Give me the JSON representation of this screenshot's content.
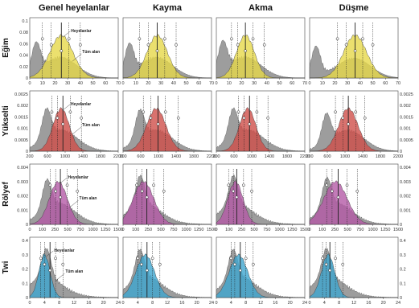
{
  "columns": [
    "Genel heyelanlar",
    "Kayma",
    "Akma",
    "Düşme"
  ],
  "rows": [
    "Eğim",
    "Yükselti",
    "Rölyef",
    "Twi"
  ],
  "labels": {
    "landslides": "Heyelanlar",
    "whole_area": "Tüm alan"
  },
  "colors": {
    "Eğim": "#e6d84a",
    "Yükselti": "#cf4f4a",
    "Rölyef": "#b45aa6",
    "Twi": "#3fa6cf",
    "whole_area": "#8c8c8c"
  },
  "chart_data": [
    {
      "type": "area",
      "row": "Eğim",
      "xlim": [
        0,
        70
      ],
      "xticks": [
        "0",
        "10",
        "20",
        "30",
        "40",
        "50",
        "60",
        "70"
      ],
      "yticks_left": [
        "0",
        "0.02",
        "0.04",
        "0.06",
        "0.08",
        "0.1"
      ],
      "yticks_right": [],
      "ylim": [
        0,
        0.1
      ],
      "panels": [
        {
          "column": "Genel heyelanlar",
          "landslide_peak": 25,
          "landslide_spread": 9,
          "area_peak": 5,
          "markers": [
            10,
            17,
            25,
            31,
            40
          ]
        },
        {
          "column": "Kayma",
          "landslide_peak": 27,
          "landslide_spread": 8,
          "area_peak": 5,
          "markers": [
            13,
            20,
            27,
            33,
            42
          ]
        },
        {
          "column": "Akma",
          "landslide_peak": 23,
          "landslide_spread": 7,
          "area_peak": 5,
          "markers": [
            12,
            17,
            23,
            29,
            38
          ]
        },
        {
          "column": "Düşme",
          "landslide_peak": 36,
          "landslide_spread": 9,
          "area_peak": 5,
          "markers": [
            22,
            29,
            36,
            42,
            50
          ]
        }
      ]
    },
    {
      "type": "area",
      "row": "Yükselti",
      "xlim": [
        0,
        2400
      ],
      "xticks": [
        "200",
        "600",
        "1000",
        "1400",
        "1800",
        "2200"
      ],
      "yticks_left": [
        "0",
        "0.0005",
        "0.001",
        "0.0015",
        "0.002",
        "0.0025"
      ],
      "yticks_right": [
        "0",
        "0.0005",
        "0.001",
        "0.0015",
        "0.002",
        "0.0025"
      ],
      "ylim": [
        0,
        0.0025
      ],
      "panels": [
        {
          "column": "Genel heyelanlar",
          "landslide_peak": 850,
          "landslide_spread": 220,
          "area_peak": 450,
          "markers": [
            600,
            750,
            900,
            1100,
            1400
          ]
        },
        {
          "column": "Kayma",
          "landslide_peak": 900,
          "landslide_spread": 260,
          "area_peak": 450,
          "markers": [
            550,
            750,
            950,
            1150,
            1500
          ]
        },
        {
          "column": "Akma",
          "landslide_peak": 850,
          "landslide_spread": 220,
          "area_peak": 450,
          "markers": [
            600,
            750,
            900,
            1100,
            1400
          ]
        },
        {
          "column": "Düşme",
          "landslide_peak": 1050,
          "landslide_spread": 260,
          "area_peak": 450,
          "markers": [
            700,
            900,
            1050,
            1250,
            1500
          ]
        }
      ]
    },
    {
      "type": "area",
      "row": "Rölyef",
      "xlim": [
        0,
        1300
      ],
      "xticks": [
        "0",
        "100",
        "250",
        "500",
        "750",
        "1000",
        "1250",
        "1500"
      ],
      "yticks_left": [
        "0",
        "0.001",
        "0.002",
        "0.003",
        "0.004"
      ],
      "yticks_right": [
        "0",
        "0.001",
        "0.002",
        "0.003",
        "0.004"
      ],
      "ylim": [
        0,
        0.004
      ],
      "panels": [
        {
          "column": "Genel heyelanlar",
          "landslide_peak": 420,
          "landslide_spread": 130,
          "area_peak": 250,
          "markers": [
            300,
            380,
            450,
            550,
            700
          ]
        },
        {
          "column": "Kayma",
          "landslide_peak": 300,
          "landslide_spread": 150,
          "area_peak": 250,
          "markers": [
            200,
            280,
            350,
            450,
            600
          ]
        },
        {
          "column": "Akma",
          "landslide_peak": 280,
          "landslide_spread": 110,
          "area_peak": 250,
          "markers": [
            180,
            250,
            300,
            400,
            520
          ]
        },
        {
          "column": "Düşme",
          "landslide_peak": 380,
          "landslide_spread": 170,
          "area_peak": 250,
          "markers": [
            250,
            330,
            420,
            550,
            700
          ]
        }
      ]
    },
    {
      "type": "area",
      "row": "Twi",
      "xlim": [
        0,
        24
      ],
      "xticks": [
        "0",
        "4",
        "8",
        "12",
        "16",
        "20",
        "24"
      ],
      "yticks_left": [
        "0",
        "0.1",
        "0.2",
        "0.3",
        "0.4"
      ],
      "yticks_right": [
        "0",
        "0.1",
        "0.2",
        "0.3",
        "0.4"
      ],
      "ylim": [
        0,
        0.4
      ],
      "panels": [
        {
          "column": "Genel heyelanlar",
          "landslide_peak": 4,
          "landslide_spread": 1.5,
          "area_peak": 4.5,
          "markers": [
            3,
            4,
            5.5,
            7,
            9
          ]
        },
        {
          "column": "Kayma",
          "landslide_peak": 6,
          "landslide_spread": 2.5,
          "area_peak": 4.5,
          "markers": [
            4,
            5,
            6.5,
            8,
            10
          ]
        },
        {
          "column": "Akma",
          "landslide_peak": 6,
          "landslide_spread": 2.5,
          "area_peak": 4.5,
          "markers": [
            4,
            5,
            6.5,
            8,
            10
          ]
        },
        {
          "column": "Düşme",
          "landslide_peak": 5,
          "landslide_spread": 1.8,
          "area_peak": 4.5,
          "markers": [
            3.5,
            4.5,
            5.5,
            7,
            9
          ]
        }
      ]
    }
  ]
}
